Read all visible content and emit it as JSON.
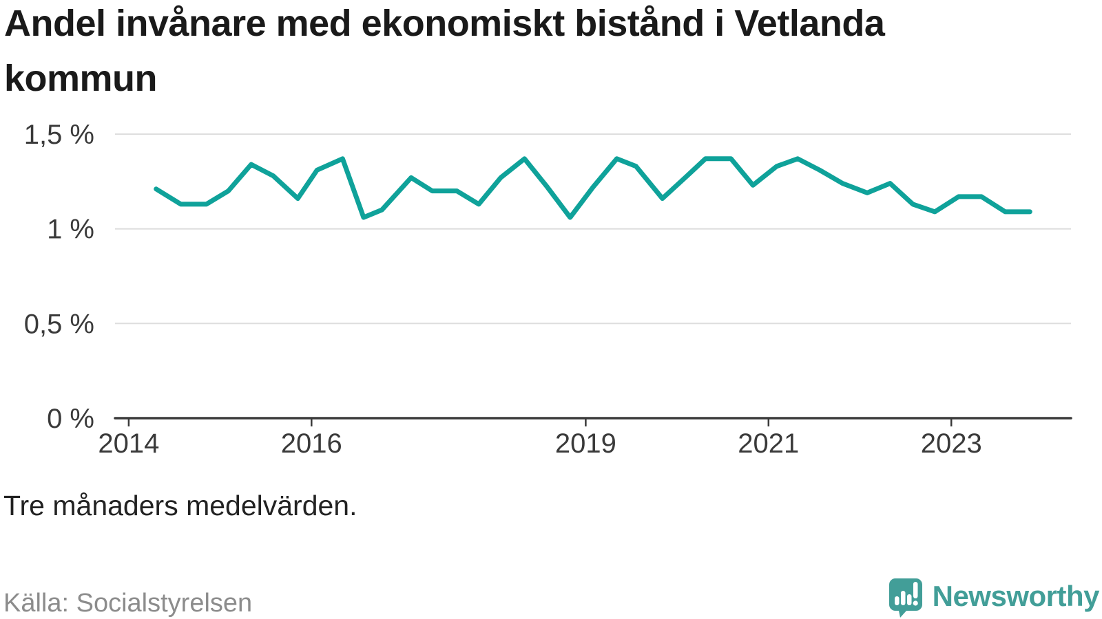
{
  "note": "Tre månaders medelvärden.",
  "source": "Källa: Socialstyrelsen",
  "brand": {
    "name": "Newsworthy",
    "color": "#429e98"
  },
  "colors": {
    "line": "#0fa29a",
    "grid": "#dedede",
    "axis": "#3a3a3a",
    "text": "#1a1a1a",
    "muted": "#8c8c8c",
    "brand": "#429e98"
  },
  "chart_data": {
    "type": "line",
    "title": "Andel invånare med ekonomiskt bistånd i Vetlanda kommun",
    "xlabel": "",
    "ylabel": "",
    "unit": "%",
    "grid": "horizontal",
    "legend": "none",
    "xlim": [
      2013.85,
      2024.31
    ],
    "ylim": [
      0,
      1.5
    ],
    "x_ticks": [
      {
        "value": 2014,
        "label": "2014"
      },
      {
        "value": 2016,
        "label": "2016"
      },
      {
        "value": 2019,
        "label": "2019"
      },
      {
        "value": 2021,
        "label": "2021"
      },
      {
        "value": 2023,
        "label": "2023"
      }
    ],
    "y_ticks": [
      {
        "value": 0,
        "label": "0 %"
      },
      {
        "value": 0.5,
        "label": "0,5 %"
      },
      {
        "value": 1,
        "label": "1 %"
      },
      {
        "value": 1.5,
        "label": "1,5 %"
      }
    ],
    "series": [
      {
        "name": "Andel invånare med ekonomiskt bistånd i Vetlanda kommun",
        "x": [
          2014.3,
          2014.57,
          2014.85,
          2015.09,
          2015.34,
          2015.58,
          2015.85,
          2016.06,
          2016.34,
          2016.57,
          2016.77,
          2017.09,
          2017.32,
          2017.59,
          2017.83,
          2018.07,
          2018.33,
          2018.58,
          2018.83,
          2019.08,
          2019.34,
          2019.55,
          2019.84,
          2020.11,
          2020.31,
          2020.59,
          2020.83,
          2021.09,
          2021.32,
          2021.56,
          2021.81,
          2022.08,
          2022.33,
          2022.58,
          2022.82,
          2023.08,
          2023.33,
          2023.59,
          2023.86
        ],
        "values": [
          1.21,
          1.13,
          1.13,
          1.2,
          1.34,
          1.28,
          1.16,
          1.31,
          1.37,
          1.06,
          1.1,
          1.27,
          1.2,
          1.2,
          1.13,
          1.27,
          1.37,
          1.22,
          1.06,
          1.22,
          1.37,
          1.33,
          1.16,
          1.28,
          1.37,
          1.37,
          1.23,
          1.33,
          1.37,
          1.31,
          1.24,
          1.19,
          1.24,
          1.13,
          1.09,
          1.17,
          1.17,
          1.09,
          1.09
        ]
      }
    ]
  }
}
